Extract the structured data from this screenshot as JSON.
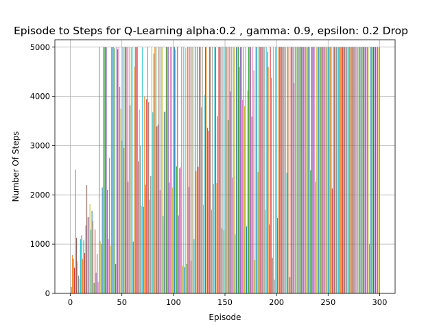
{
  "chart_data": {
    "type": "bar",
    "title": "Episode to Steps for Q-Learning alpha:0.2 , gamma: 0.9, epsilon: 0.2 Drop",
    "xlabel": "Episode",
    "ylabel": "Number Of Steps",
    "xlim": [
      -15,
      315
    ],
    "ylim": [
      0,
      5150
    ],
    "xticks": [
      0,
      50,
      100,
      150,
      200,
      250,
      300
    ],
    "yticks": [
      0,
      1000,
      2000,
      3000,
      4000,
      5000
    ],
    "grid": true,
    "episodes_start": 1,
    "episodes_end": 300,
    "values": [
      130,
      780,
      700,
      520,
      2510,
      1130,
      650,
      360,
      290,
      1100,
      1180,
      700,
      1080,
      820,
      1380,
      2200,
      1550,
      1550,
      1810,
      1290,
      1670,
      1470,
      210,
      1300,
      420,
      800,
      230,
      5000,
      1060,
      1000,
      2150,
      5000,
      5000,
      5000,
      5000,
      2100,
      1100,
      2750,
      960,
      5000,
      5000,
      5000,
      4980,
      600,
      5000,
      4960,
      5000,
      4190,
      3750,
      3100,
      5000,
      2950,
      5000,
      5000,
      5000,
      2270,
      5000,
      3820,
      5000,
      5000,
      1050,
      4600,
      5000,
      5000,
      5000,
      2680,
      3730,
      3000,
      1770,
      5000,
      1760,
      4000,
      2200,
      3940,
      5000,
      3880,
      1900,
      2380,
      5000,
      3680,
      4870,
      5000,
      5000,
      3390,
      3430,
      5000,
      2100,
      5000,
      5000,
      1570,
      3690,
      3690,
      5000,
      5000,
      5000,
      2250,
      5000,
      5000,
      2150,
      5000,
      5000,
      4950,
      2580,
      5000,
      1580,
      2540,
      2560,
      5000,
      560,
      5000,
      530,
      4980,
      600,
      5000,
      2160,
      5000,
      660,
      5000,
      5000,
      1100,
      5000,
      2480,
      5000,
      2570,
      5000,
      5000,
      3780,
      5000,
      1800,
      4030,
      5000,
      5000,
      3360,
      3300,
      5000,
      5000,
      1700,
      5000,
      2220,
      5000,
      5000,
      2240,
      3600,
      5000,
      5000,
      5000,
      1320,
      5000,
      1280,
      5000,
      5000,
      5000,
      3520,
      5000,
      4100,
      5000,
      2350,
      5000,
      5000,
      1200,
      5000,
      5000,
      5000,
      4600,
      5000,
      5000,
      3930,
      5000,
      3800,
      5000,
      1360,
      4120,
      5000,
      5000,
      5000,
      3590,
      5000,
      4530,
      680,
      5000,
      5000,
      2460,
      5000,
      5000,
      5000,
      5000,
      5000,
      5000,
      1700,
      5000,
      4900,
      4600,
      1400,
      5000,
      4370,
      720,
      5000,
      280,
      5000,
      5000,
      1530,
      5000,
      5000,
      5000,
      5000,
      5000,
      5000,
      5000,
      5000,
      2450,
      5000,
      5000,
      330,
      5000,
      5000,
      5000,
      4270,
      5000,
      5000,
      5000,
      5000,
      5000,
      5000,
      5000,
      5000,
      5000,
      5000,
      5000,
      5000,
      5000,
      5000,
      5000,
      2500,
      5000,
      5000,
      5000,
      5000,
      2270,
      5000,
      5000,
      5000,
      5000,
      5000,
      5000,
      5000,
      5000,
      5000,
      5000,
      5000,
      5000,
      5000,
      5000,
      5000,
      2130,
      5000,
      5000,
      5000,
      5000,
      5000,
      5000,
      5000,
      5000,
      5000,
      5000,
      5000,
      5000,
      5000,
      5000,
      5000,
      5000,
      5000,
      5000,
      5000,
      5000,
      5000,
      5000,
      5000,
      5000,
      5000,
      5000,
      5000,
      5000,
      5000,
      5000,
      5000,
      5000,
      5000,
      5000,
      5000,
      1000,
      5000,
      5000,
      5000,
      5000,
      5000,
      5000,
      5000,
      5000,
      5000,
      5000
    ],
    "colors": [
      "#1f77b4",
      "#ff7f0e",
      "#2ca02c",
      "#d62728",
      "#9467bd",
      "#8c564b",
      "#e377c2",
      "#7f7f7f",
      "#bcbd22",
      "#17becf"
    ]
  }
}
